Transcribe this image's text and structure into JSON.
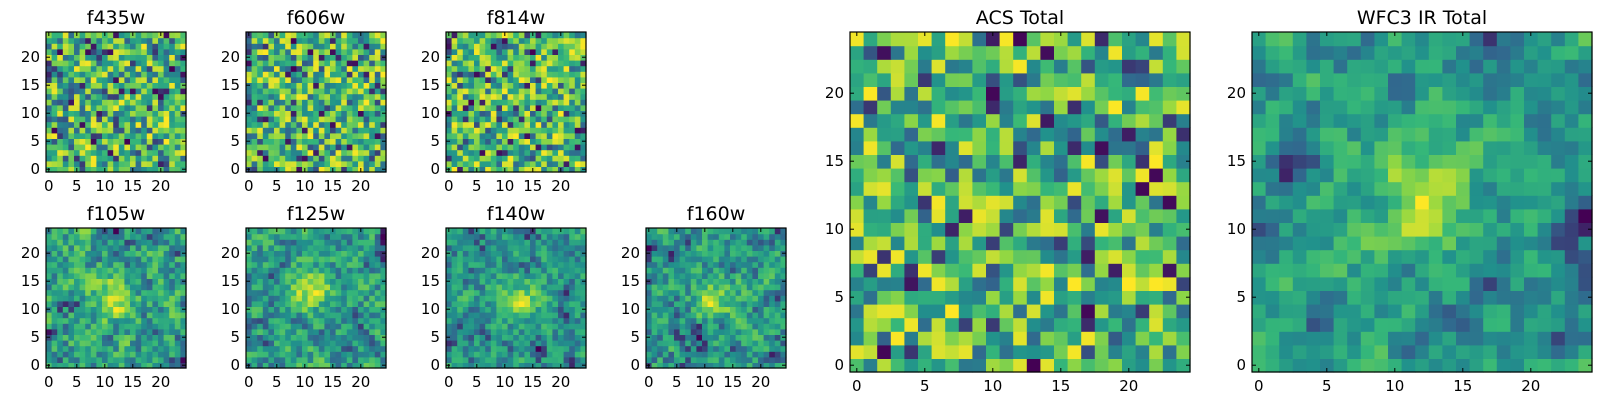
{
  "chart_data": [
    {
      "type": "heatmap",
      "title": "f435w",
      "size": 25,
      "xlim": [
        -0.5,
        24.5
      ],
      "ylim": [
        -0.5,
        24.5
      ],
      "xticks": [
        0,
        5,
        10,
        15,
        20
      ],
      "yticks": [
        0,
        5,
        10,
        15,
        20
      ],
      "colormap": [
        "#440154",
        "#31688e",
        "#21918c",
        "#35b779",
        "#90d743",
        "#fde725"
      ],
      "seed": 11,
      "smoothing": 0,
      "hotspots": []
    },
    {
      "type": "heatmap",
      "title": "f606w",
      "size": 25,
      "xlim": [
        -0.5,
        24.5
      ],
      "ylim": [
        -0.5,
        24.5
      ],
      "xticks": [
        0,
        5,
        10,
        15,
        20
      ],
      "yticks": [
        0,
        5,
        10,
        15,
        20
      ],
      "colormap": [
        "#440154",
        "#31688e",
        "#21918c",
        "#35b779",
        "#90d743",
        "#fde725"
      ],
      "seed": 23,
      "smoothing": 0,
      "hotspots": []
    },
    {
      "type": "heatmap",
      "title": "f814w",
      "size": 25,
      "xlim": [
        -0.5,
        24.5
      ],
      "ylim": [
        -0.5,
        24.5
      ],
      "xticks": [
        0,
        5,
        10,
        15,
        20
      ],
      "yticks": [
        0,
        5,
        10,
        15,
        20
      ],
      "colormap": [
        "#440154",
        "#31688e",
        "#21918c",
        "#35b779",
        "#90d743",
        "#fde725"
      ],
      "seed": 37,
      "smoothing": 0,
      "hotspots": []
    },
    {
      "type": "heatmap",
      "title": "f105w",
      "size": 25,
      "xlim": [
        -0.5,
        24.5
      ],
      "ylim": [
        -0.5,
        24.5
      ],
      "xticks": [
        0,
        5,
        10,
        15,
        20
      ],
      "yticks": [
        0,
        5,
        10,
        15,
        20
      ],
      "colormap": [
        "#440154",
        "#31688e",
        "#21918c",
        "#35b779",
        "#90d743",
        "#fde725"
      ],
      "seed": 41,
      "smoothing": 1,
      "hotspots": [
        [
          12,
          12
        ]
      ]
    },
    {
      "type": "heatmap",
      "title": "f125w",
      "size": 25,
      "xlim": [
        -0.5,
        24.5
      ],
      "ylim": [
        -0.5,
        24.5
      ],
      "xticks": [
        0,
        5,
        10,
        15,
        20
      ],
      "yticks": [
        0,
        5,
        10,
        15,
        20
      ],
      "colormap": [
        "#440154",
        "#31688e",
        "#21918c",
        "#35b779",
        "#90d743",
        "#fde725"
      ],
      "seed": 53,
      "smoothing": 1,
      "hotspots": [
        [
          11,
          14
        ]
      ]
    },
    {
      "type": "heatmap",
      "title": "f140w",
      "size": 25,
      "xlim": [
        -0.5,
        24.5
      ],
      "ylim": [
        -0.5,
        24.5
      ],
      "xticks": [
        0,
        5,
        10,
        15,
        20
      ],
      "yticks": [
        0,
        5,
        10,
        15,
        20
      ],
      "colormap": [
        "#440154",
        "#31688e",
        "#21918c",
        "#35b779",
        "#90d743",
        "#fde725"
      ],
      "seed": 67,
      "smoothing": 1,
      "hotspots": [
        [
          13,
          12
        ]
      ]
    },
    {
      "type": "heatmap",
      "title": "f160w",
      "size": 25,
      "xlim": [
        -0.5,
        24.5
      ],
      "ylim": [
        -0.5,
        24.5
      ],
      "xticks": [
        0,
        5,
        10,
        15,
        20
      ],
      "yticks": [
        0,
        5,
        10,
        15,
        20
      ],
      "colormap": [
        "#440154",
        "#31688e",
        "#21918c",
        "#35b779",
        "#90d743",
        "#fde725"
      ],
      "seed": 79,
      "smoothing": 1,
      "hotspots": [
        [
          12,
          12
        ]
      ]
    },
    {
      "type": "heatmap",
      "title": "ACS Total",
      "size": 25,
      "xlim": [
        -0.5,
        24.5
      ],
      "ylim": [
        -0.5,
        24.5
      ],
      "xticks": [
        0,
        5,
        10,
        15,
        20
      ],
      "yticks": [
        0,
        5,
        10,
        15,
        20
      ],
      "colormap": [
        "#440154",
        "#31688e",
        "#21918c",
        "#35b779",
        "#90d743",
        "#fde725"
      ],
      "seed": 97,
      "smoothing": 0,
      "hotspots": []
    },
    {
      "type": "heatmap",
      "title": "WFC3 IR Total",
      "size": 25,
      "xlim": [
        -0.5,
        24.5
      ],
      "ylim": [
        -0.5,
        24.5
      ],
      "xticks": [
        0,
        5,
        10,
        15,
        20
      ],
      "yticks": [
        0,
        5,
        10,
        15,
        20
      ],
      "colormap": [
        "#440154",
        "#31688e",
        "#21918c",
        "#35b779",
        "#90d743",
        "#fde725"
      ],
      "seed": 113,
      "smoothing": 2,
      "hotspots": [
        [
          12,
          12
        ]
      ]
    }
  ]
}
